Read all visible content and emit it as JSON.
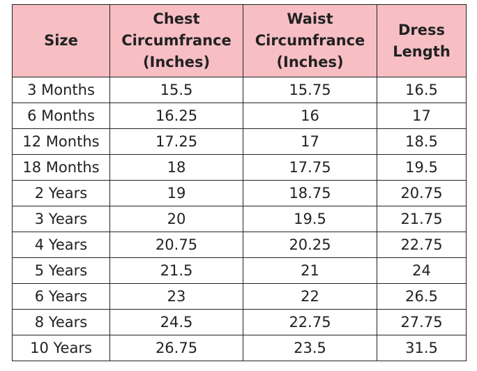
{
  "table": {
    "header": [
      "Size",
      "Chest\nCircumfrance\n(Inches)",
      "Waist\nCircumfrance\n(Inches)",
      "Dress\nLength"
    ],
    "rows": [
      [
        "3 Months",
        "15.5",
        "15.75",
        "16.5"
      ],
      [
        "6 Months",
        "16.25",
        "16",
        "17"
      ],
      [
        "12 Months",
        "17.25",
        "17",
        "18.5"
      ],
      [
        "18 Months",
        "18",
        "17.75",
        "19.5"
      ],
      [
        "2 Years",
        "19",
        "18.75",
        "20.75"
      ],
      [
        "3 Years",
        "20",
        "19.5",
        "21.75"
      ],
      [
        "4 Years",
        "20.75",
        "20.25",
        "22.75"
      ],
      [
        "5 Years",
        "21.5",
        "21",
        "24"
      ],
      [
        "6 Years",
        "23",
        "22",
        "26.5"
      ],
      [
        "8 Years",
        "24.5",
        "22.75",
        "27.75"
      ],
      [
        "10 Years",
        "26.75",
        "23.5",
        "31.5"
      ]
    ]
  }
}
